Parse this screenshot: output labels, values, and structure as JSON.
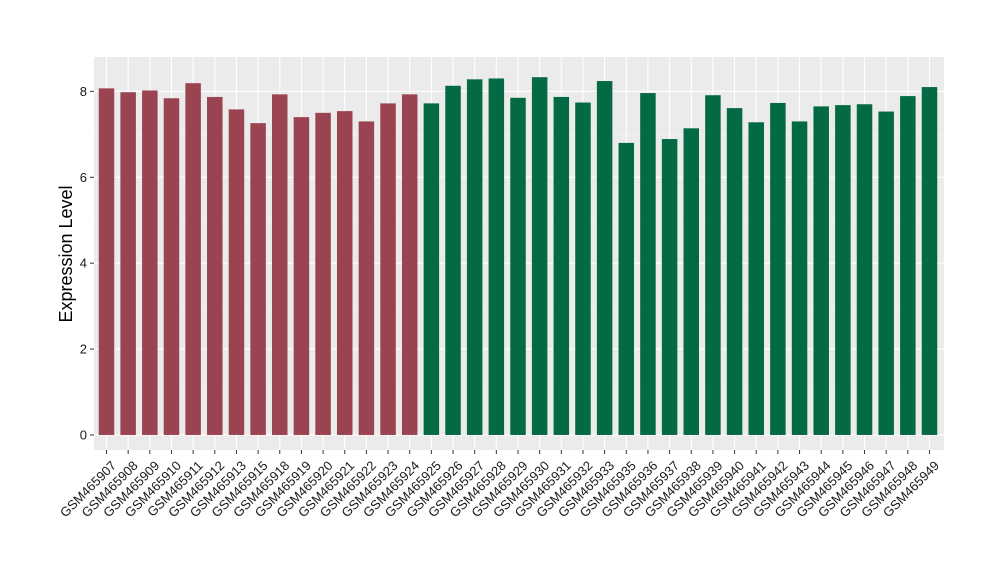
{
  "chart_data": {
    "type": "bar",
    "title": "",
    "xlabel": "",
    "ylabel": "Expression Level",
    "ylim": [
      -0.35,
      8.8
    ],
    "yticks": [
      0,
      2,
      4,
      6,
      8
    ],
    "grid": true,
    "legend": "none",
    "categories": [
      "GSM465907",
      "GSM465908",
      "GSM465909",
      "GSM465910",
      "GSM465911",
      "GSM465912",
      "GSM465913",
      "GSM465915",
      "GSM465918",
      "GSM465919",
      "GSM465920",
      "GSM465921",
      "GSM465922",
      "GSM465923",
      "GSM465924",
      "GSM465925",
      "GSM465926",
      "GSM465927",
      "GSM465928",
      "GSM465929",
      "GSM465930",
      "GSM465931",
      "GSM465932",
      "GSM465933",
      "GSM465935",
      "GSM465936",
      "GSM465937",
      "GSM465938",
      "GSM465939",
      "GSM465940",
      "GSM465941",
      "GSM465942",
      "GSM465943",
      "GSM465944",
      "GSM465945",
      "GSM465946",
      "GSM465947",
      "GSM465948",
      "GSM465949"
    ],
    "values": [
      8.07,
      7.98,
      8.02,
      7.84,
      8.19,
      7.87,
      7.58,
      7.26,
      7.93,
      7.4,
      7.5,
      7.54,
      7.3,
      7.72,
      7.93,
      7.72,
      8.13,
      8.28,
      8.3,
      7.85,
      8.33,
      7.87,
      7.74,
      8.24,
      6.8,
      7.96,
      6.89,
      7.14,
      7.91,
      7.61,
      7.28,
      7.73,
      7.3,
      7.65,
      7.68,
      7.7,
      7.53,
      7.89,
      8.1
    ],
    "groups": [
      {
        "color": "#9b4451",
        "count": 15
      },
      {
        "color": "#046a43",
        "count": 24
      }
    ],
    "colors": {
      "panel": "#ebebeb",
      "grid_major": "#ffffff",
      "grid_minor": "#f5f5f5"
    }
  }
}
